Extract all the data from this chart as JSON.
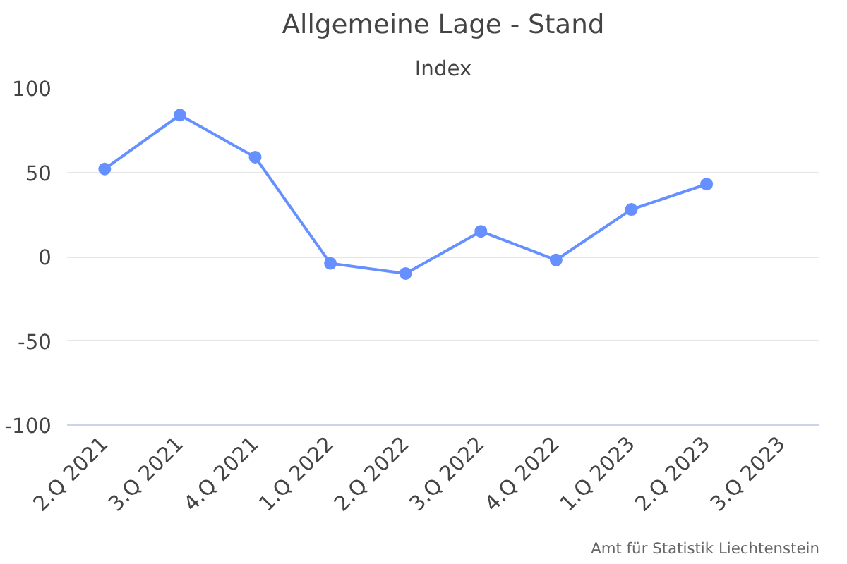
{
  "chart_data": {
    "type": "line",
    "title": "Allgemeine Lage - Stand",
    "subtitle": "Index",
    "categories": [
      "2.Q 2021",
      "3.Q 2021",
      "4.Q 2021",
      "1.Q 2022",
      "2.Q 2022",
      "3.Q 2022",
      "4.Q 2022",
      "1.Q 2023",
      "2.Q 2023",
      "3.Q 2023"
    ],
    "series": [
      {
        "color": "#6690ff",
        "values": [
          52,
          84,
          59,
          -4,
          -10,
          15,
          -2,
          28,
          43,
          null
        ]
      }
    ],
    "ylim": [
      -100,
      100
    ],
    "yticks": [
      -100,
      -50,
      0,
      50,
      100
    ],
    "grid": "y",
    "marker": "circle",
    "line_style": "solid",
    "annotations": [
      "Amt für Statistik Liechtenstein"
    ]
  }
}
